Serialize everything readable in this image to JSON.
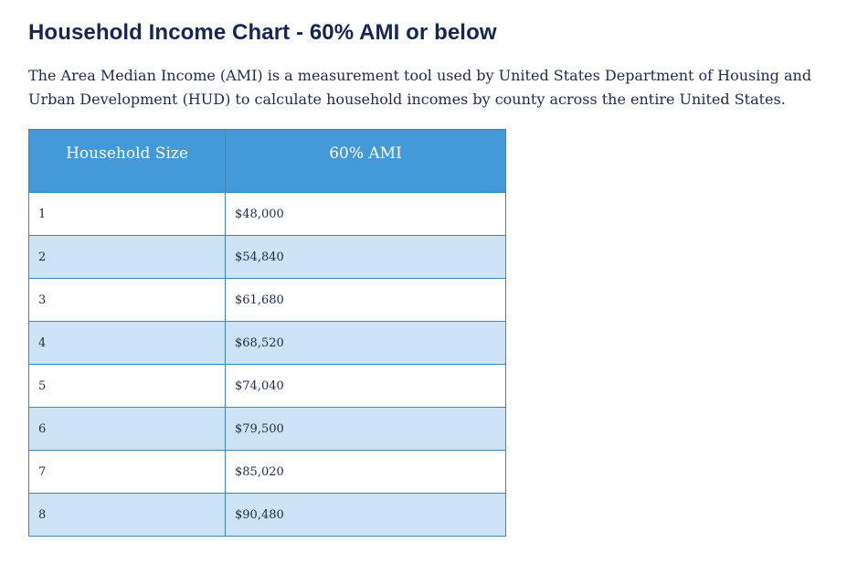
{
  "heading": "Household Income Chart - 60% AMI or below",
  "description": "The Area Median Income (AMI) is a measurement tool used by United States Department of Housing and Urban Development (HUD) to calculate household incomes by county across the entire United States.",
  "table": {
    "columns": [
      "Household Size",
      "60% AMI"
    ],
    "rows": [
      {
        "size": "1",
        "income": "$48,000"
      },
      {
        "size": "2",
        "income": "$54,840"
      },
      {
        "size": "3",
        "income": "$61,680"
      },
      {
        "size": "4",
        "income": "$68,520"
      },
      {
        "size": "5",
        "income": "$74,040"
      },
      {
        "size": "6",
        "income": "$79,500"
      },
      {
        "size": "7",
        "income": "$85,020"
      },
      {
        "size": "8",
        "income": "$90,480"
      }
    ]
  },
  "colors": {
    "header_bg": "#4499d9",
    "alt_row_bg": "#cce4f5",
    "border": "#3b86c2",
    "heading_text": "#172554"
  }
}
